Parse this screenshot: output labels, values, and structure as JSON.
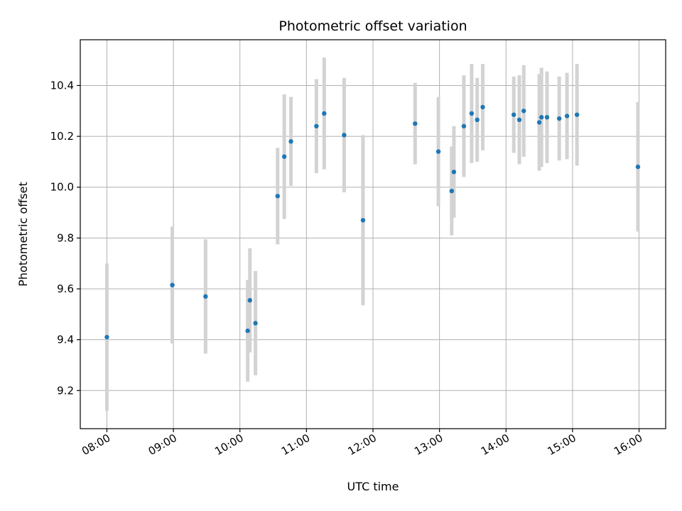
{
  "chart_data": {
    "type": "scatter",
    "title": "Photometric offset variation",
    "xlabel": "UTC time",
    "ylabel": "Photometric offset",
    "grid": true,
    "xlim": [
      "07:36",
      "16:24"
    ],
    "ylim": [
      9.05,
      10.58
    ],
    "x_ticks": [
      "08:00",
      "09:00",
      "10:00",
      "11:00",
      "12:00",
      "13:00",
      "14:00",
      "15:00",
      "16:00"
    ],
    "y_ticks": [
      9.2,
      9.4,
      9.6,
      9.8,
      10.0,
      10.2,
      10.4
    ],
    "y_tick_labels": [
      "9.2",
      "9.4",
      "9.6",
      "9.8",
      "10.0",
      "10.2",
      "10.4"
    ],
    "colors": {
      "marker": "#1f77b4",
      "error_bar": "#d3d3d3",
      "grid": "#b0b0b0"
    },
    "points": [
      {
        "x": "08:00",
        "y": 9.41,
        "yerr": 0.29
      },
      {
        "x": "08:59",
        "y": 9.615,
        "yerr": 0.23
      },
      {
        "x": "09:29",
        "y": 9.57,
        "yerr": 0.225
      },
      {
        "x": "10:07",
        "y": 9.435,
        "yerr": 0.2
      },
      {
        "x": "10:09",
        "y": 9.555,
        "yerr": 0.205
      },
      {
        "x": "10:14",
        "y": 9.465,
        "yerr": 0.205
      },
      {
        "x": "10:34",
        "y": 9.965,
        "yerr": 0.19
      },
      {
        "x": "10:40",
        "y": 10.12,
        "yerr": 0.245
      },
      {
        "x": "10:46",
        "y": 10.18,
        "yerr": 0.175
      },
      {
        "x": "11:09",
        "y": 10.24,
        "yerr": 0.185
      },
      {
        "x": "11:16",
        "y": 10.29,
        "yerr": 0.22
      },
      {
        "x": "11:34",
        "y": 10.205,
        "yerr": 0.225
      },
      {
        "x": "11:51",
        "y": 9.87,
        "yerr": 0.335
      },
      {
        "x": "12:38",
        "y": 10.25,
        "yerr": 0.16
      },
      {
        "x": "12:59",
        "y": 10.14,
        "yerr": 0.215
      },
      {
        "x": "13:11",
        "y": 9.985,
        "yerr": 0.175
      },
      {
        "x": "13:13",
        "y": 10.06,
        "yerr": 0.18
      },
      {
        "x": "13:22",
        "y": 10.24,
        "yerr": 0.2
      },
      {
        "x": "13:29",
        "y": 10.29,
        "yerr": 0.195
      },
      {
        "x": "13:34",
        "y": 10.265,
        "yerr": 0.165
      },
      {
        "x": "13:39",
        "y": 10.315,
        "yerr": 0.17
      },
      {
        "x": "14:07",
        "y": 10.285,
        "yerr": 0.15
      },
      {
        "x": "14:12",
        "y": 10.265,
        "yerr": 0.175
      },
      {
        "x": "14:16",
        "y": 10.3,
        "yerr": 0.18
      },
      {
        "x": "14:30",
        "y": 10.255,
        "yerr": 0.19
      },
      {
        "x": "14:32",
        "y": 10.275,
        "yerr": 0.195
      },
      {
        "x": "14:37",
        "y": 10.275,
        "yerr": 0.18
      },
      {
        "x": "14:48",
        "y": 10.27,
        "yerr": 0.165
      },
      {
        "x": "14:55",
        "y": 10.28,
        "yerr": 0.17
      },
      {
        "x": "15:04",
        "y": 10.285,
        "yerr": 0.2
      },
      {
        "x": "15:59",
        "y": 10.08,
        "yerr": 0.255
      }
    ]
  }
}
